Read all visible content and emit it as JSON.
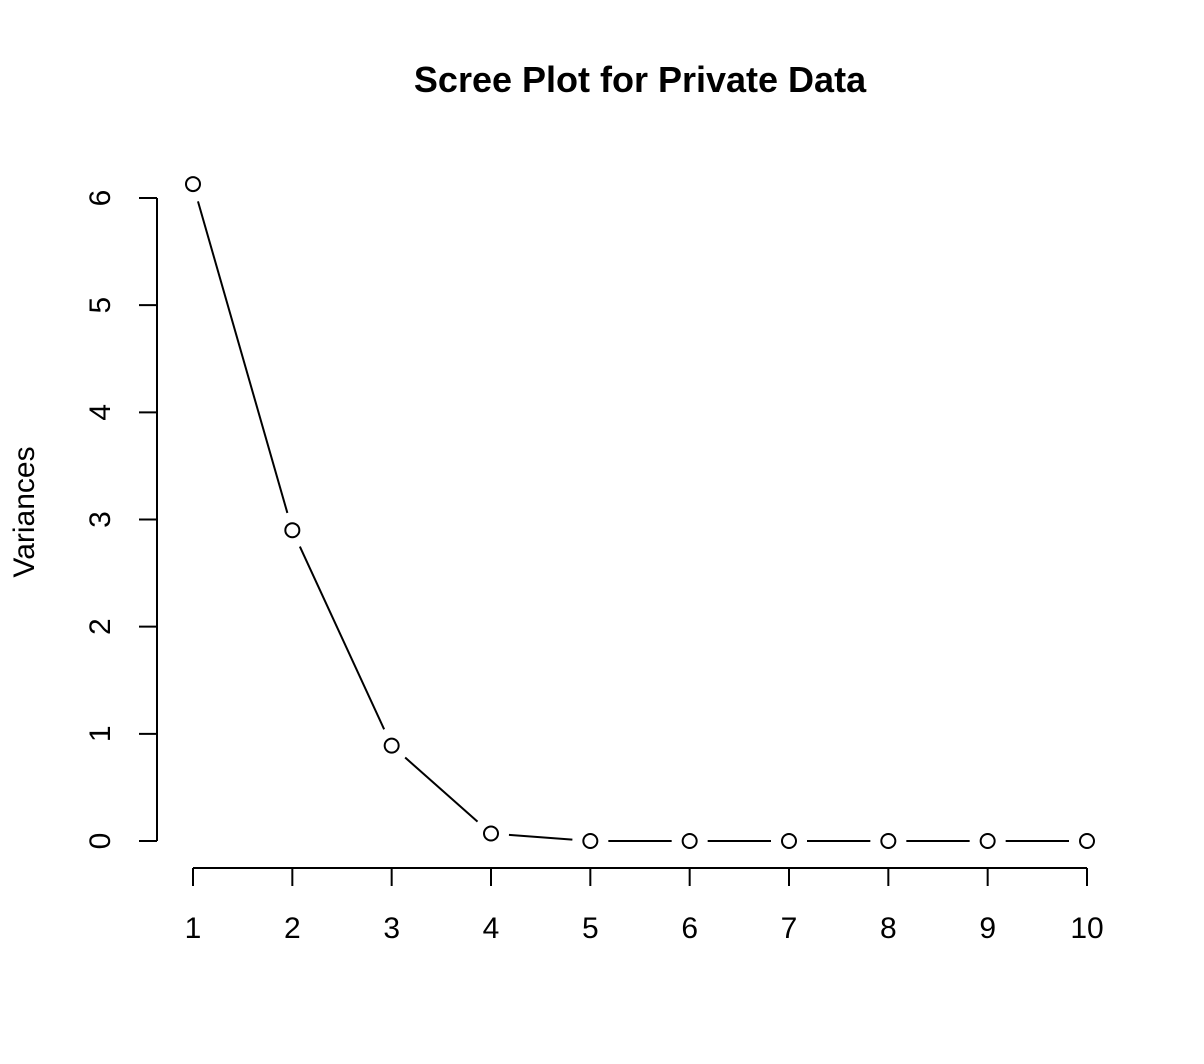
{
  "chart_data": {
    "type": "line",
    "title": "Scree Plot for Private Data",
    "xlabel": "",
    "ylabel": "Variances",
    "x": [
      1,
      2,
      3,
      4,
      5,
      6,
      7,
      8,
      9,
      10
    ],
    "x_tick_labels": [
      "1",
      "2",
      "3",
      "4",
      "5",
      "6",
      "7",
      "8",
      "9",
      "10"
    ],
    "y_tick_values": [
      0,
      1,
      2,
      3,
      4,
      5,
      6
    ],
    "y_tick_labels": [
      "0",
      "1",
      "2",
      "3",
      "4",
      "5",
      "6"
    ],
    "series": [
      {
        "values": [
          6.13,
          2.9,
          0.89,
          0.07,
          0.0,
          0.0,
          0.0,
          0.0,
          0.0,
          0.0
        ]
      }
    ],
    "xlim": [
      1,
      10
    ],
    "ylim": [
      0,
      6
    ],
    "marker": "open-circle",
    "line_color": "#000000",
    "grid": false,
    "legend": "none"
  }
}
